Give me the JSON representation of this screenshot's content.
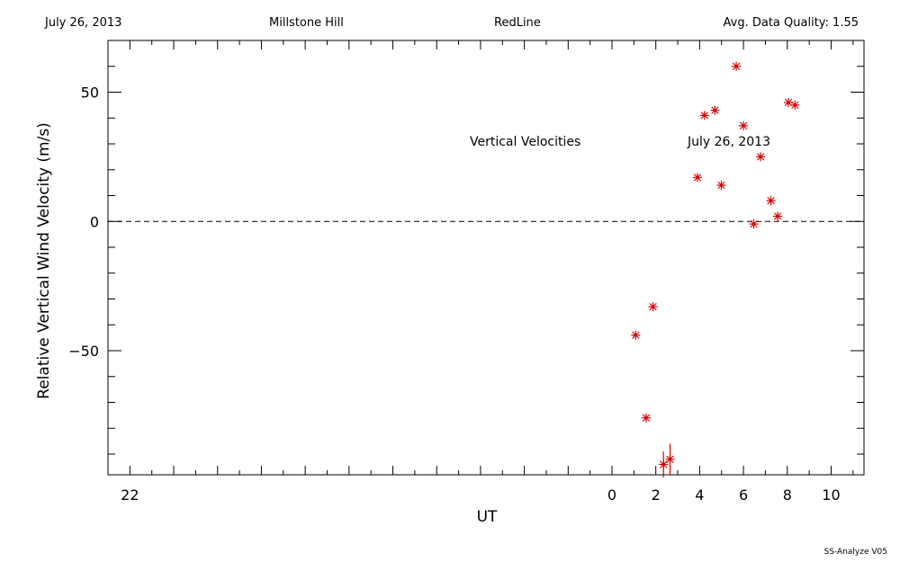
{
  "header": {
    "date": "July 26, 2013",
    "site": "Millstone Hill",
    "filter": "RedLine",
    "quality": "Avg. Data Quality: 1.55"
  },
  "footer": "SS-Analyze V05",
  "colors": {
    "points": "#d40000",
    "axes": "#000000"
  },
  "chart_data": {
    "type": "scatter",
    "title": "",
    "xlabel": "UT",
    "ylabel": "Relative Vertical Wind Velocity (m/s)",
    "xlim": [
      -23,
      11.5
    ],
    "ylim": [
      -98,
      70
    ],
    "x_ticks": [
      {
        "value": -22,
        "label": "22"
      },
      {
        "value": 0,
        "label": "0"
      },
      {
        "value": 2,
        "label": "2"
      },
      {
        "value": 4,
        "label": "4"
      },
      {
        "value": 6,
        "label": "6"
      },
      {
        "value": 8,
        "label": "8"
      },
      {
        "value": 10,
        "label": "10"
      }
    ],
    "y_ticks": [
      {
        "value": -50,
        "label": "−50"
      },
      {
        "value": 0,
        "label": "0"
      },
      {
        "value": 50,
        "label": "50"
      }
    ],
    "zero_line": true,
    "grid": false,
    "annotations": [
      "Vertical Velocities",
      "July 26, 2013"
    ],
    "series": [
      {
        "marker": "asterisk",
        "points": [
          {
            "x": 1.08,
            "y": -44
          },
          {
            "x": 1.56,
            "y": -76
          },
          {
            "x": 1.87,
            "y": -33
          },
          {
            "x": 2.35,
            "y": -94,
            "err": 5
          },
          {
            "x": 2.65,
            "y": -92,
            "err": 6
          },
          {
            "x": 3.9,
            "y": 17
          },
          {
            "x": 4.22,
            "y": 41
          },
          {
            "x": 4.7,
            "y": 43
          },
          {
            "x": 4.99,
            "y": 14
          },
          {
            "x": 5.67,
            "y": 60
          },
          {
            "x": 6.0,
            "y": 37
          },
          {
            "x": 6.47,
            "y": -1
          },
          {
            "x": 6.78,
            "y": 25
          },
          {
            "x": 7.25,
            "y": 8
          },
          {
            "x": 7.56,
            "y": 2
          },
          {
            "x": 8.05,
            "y": 46
          },
          {
            "x": 8.35,
            "y": 45
          }
        ]
      }
    ]
  }
}
